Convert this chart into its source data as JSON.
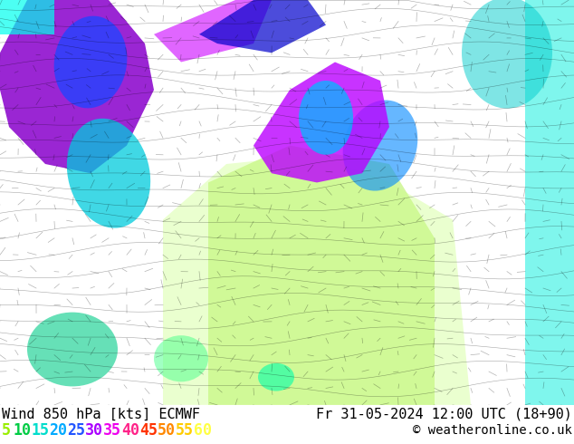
{
  "title_left": "Wind 850 hPa [kts] ECMWF",
  "title_right": "Fr 31-05-2024 12:00 UTC (18+90)",
  "copyright": "© weatheronline.co.uk",
  "colorbar_values": [
    "5",
    "10",
    "15",
    "20",
    "25",
    "30",
    "35",
    "40",
    "45",
    "50",
    "55",
    "60"
  ],
  "colorbar_colors": [
    "#99ee00",
    "#00cc44",
    "#00ddcc",
    "#00aaff",
    "#2255ff",
    "#aa00ff",
    "#ee00ee",
    "#ff2288",
    "#ff3300",
    "#ff8800",
    "#ffcc00",
    "#ffff44"
  ],
  "bg_color": "#ffffff",
  "map_bg": "#f0f8f0",
  "label_color": "#000000",
  "font_family": "monospace",
  "title_fontsize": 11,
  "colorbar_fontsize": 12,
  "figsize": [
    6.34,
    4.9
  ],
  "dpi": 100,
  "map_white_bg": "#ffffff",
  "map_light_green": "#cceecc",
  "map_yellow_green": "#ccff88",
  "map_cyan": "#00ffee",
  "map_blue_purple": "#8800ff",
  "map_teal": "#00cccc"
}
